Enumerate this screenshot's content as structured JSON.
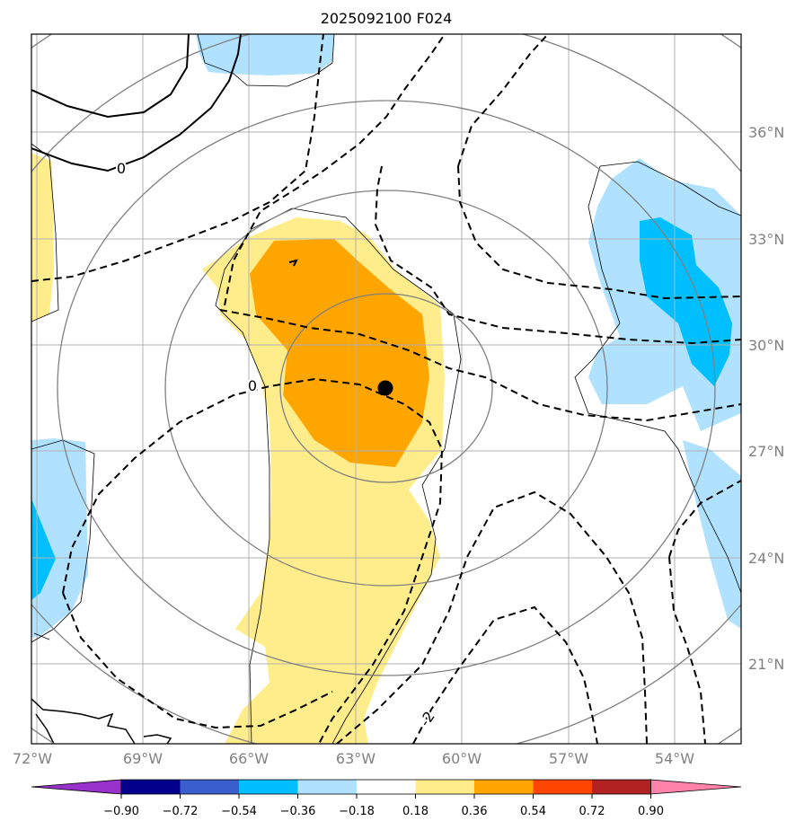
{
  "title": "2025092100 F024",
  "map": {
    "lon_ticks": [
      {
        "label": "72°W",
        "lon": -72
      },
      {
        "label": "69°W",
        "lon": -69
      },
      {
        "label": "66°W",
        "lon": -66
      },
      {
        "label": "63°W",
        "lon": -63
      },
      {
        "label": "60°W",
        "lon": -60
      },
      {
        "label": "57°W",
        "lon": -57
      },
      {
        "label": "54°W",
        "lon": -54
      }
    ],
    "lat_ticks": [
      {
        "label": "36°N",
        "lat": 36
      },
      {
        "label": "33°N",
        "lat": 33
      },
      {
        "label": "30°N",
        "lat": 30
      },
      {
        "label": "27°N",
        "lat": 27
      },
      {
        "label": "24°N",
        "lat": 24
      },
      {
        "label": "21°N",
        "lat": 21
      }
    ],
    "contour_labels": [
      {
        "text": "0",
        "lon": -69.5,
        "lat": 35
      },
      {
        "text": "0",
        "lon": -65.5,
        "lat": 28.9
      },
      {
        "text": "-2",
        "lon": -60.1,
        "lat": 19.1
      }
    ],
    "center_marker": {
      "lon": -62.2,
      "lat": 28.8
    },
    "ring_radii_deg": [
      2.5,
      5,
      7.5,
      10,
      12.5
    ]
  },
  "colorbar": {
    "colors": [
      "#9932CC",
      "#00008B",
      "#3A5FCD",
      "#00BFFF",
      "#B0E2FF",
      "#FFFFFF",
      "#FFEC8B",
      "#FFA500",
      "#FF4500",
      "#B22222",
      "#FF82AB"
    ],
    "tick_labels": [
      "−0.90",
      "−0.72",
      "−0.54",
      "−0.36",
      "−0.18",
      "0.18",
      "0.36",
      "0.54",
      "0.72",
      "0.90"
    ]
  }
}
